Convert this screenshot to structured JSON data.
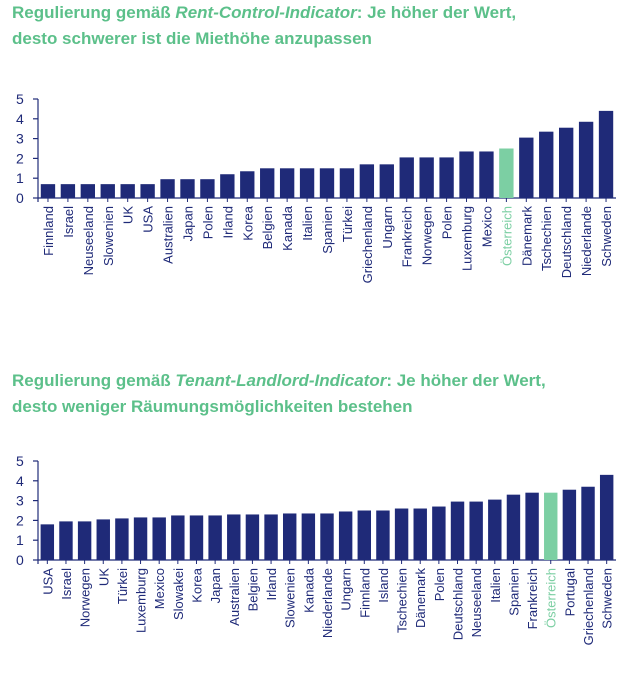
{
  "chart_data": [
    {
      "type": "bar",
      "title_prefix": "Regulierung gemäß ",
      "title_emph": "Rent-Control-Indicator",
      "title_rest": ": Je höher der Wert,",
      "title_line2": "desto schwerer ist die Miethöhe anzupassen",
      "ylim": [
        0,
        5
      ],
      "yticks": [
        0,
        1,
        2,
        3,
        4,
        5
      ],
      "highlight": "Österreich",
      "categories": [
        "Finnland",
        "Israel",
        "Neuseeland",
        "Slowenien",
        "UK",
        "USA",
        "Australien",
        "Japan",
        "Polen",
        "Irland",
        "Korea",
        "Belgien",
        "Kanada",
        "Italien",
        "Spanien",
        "Türkei",
        "Griechenland",
        "Ungarn",
        "Frankreich",
        "Norwegen",
        "Polen",
        "Luxemburg",
        "Mexico",
        "Österreich",
        "Dänemark",
        "Tschechien",
        "Deutschland",
        "Niederlande",
        "Schweden"
      ],
      "values": [
        0.7,
        0.7,
        0.7,
        0.7,
        0.7,
        0.7,
        0.95,
        0.95,
        0.95,
        1.2,
        1.35,
        1.5,
        1.5,
        1.5,
        1.5,
        1.5,
        1.7,
        1.7,
        2.05,
        2.05,
        2.05,
        2.35,
        2.35,
        2.5,
        3.05,
        3.35,
        3.55,
        3.85,
        4.4
      ]
    },
    {
      "type": "bar",
      "title_prefix": "Regulierung gemäß ",
      "title_emph": "Tenant-Landlord-Indicator",
      "title_rest": ": Je höher der Wert,",
      "title_line2": "desto weniger Räumungsmöglichkeiten bestehen",
      "ylim": [
        0,
        5
      ],
      "yticks": [
        0,
        1,
        2,
        3,
        4,
        5
      ],
      "highlight": "Österreich",
      "categories": [
        "USA",
        "Israel",
        "Norwegen",
        "UK",
        "Türkei",
        "Luxemburg",
        "Mexico",
        "Slowakei",
        "Korea",
        "Japan",
        "Australien",
        "Belgien",
        "Irland",
        "Slowenien",
        "Kanada",
        "Niederlande",
        "Ungarn",
        "Finnland",
        "Island",
        "Tschechien",
        "Dänemark",
        "Polen",
        "Deutschland",
        "Neuseeland",
        "Italien",
        "Spanien",
        "Frankreich",
        "Österreich",
        "Portugal",
        "Griechenland",
        "Schweden"
      ],
      "values": [
        1.8,
        1.95,
        1.95,
        2.05,
        2.1,
        2.15,
        2.15,
        2.25,
        2.25,
        2.25,
        2.3,
        2.3,
        2.3,
        2.35,
        2.35,
        2.35,
        2.45,
        2.5,
        2.5,
        2.6,
        2.6,
        2.7,
        2.95,
        2.95,
        3.05,
        3.3,
        3.4,
        3.4,
        3.55,
        3.7,
        4.3
      ]
    }
  ],
  "colors": {
    "bar": "#1f2a78",
    "highlight": "#7ccfa3",
    "axis": "#1f2a78",
    "title": "#5cc08a"
  }
}
